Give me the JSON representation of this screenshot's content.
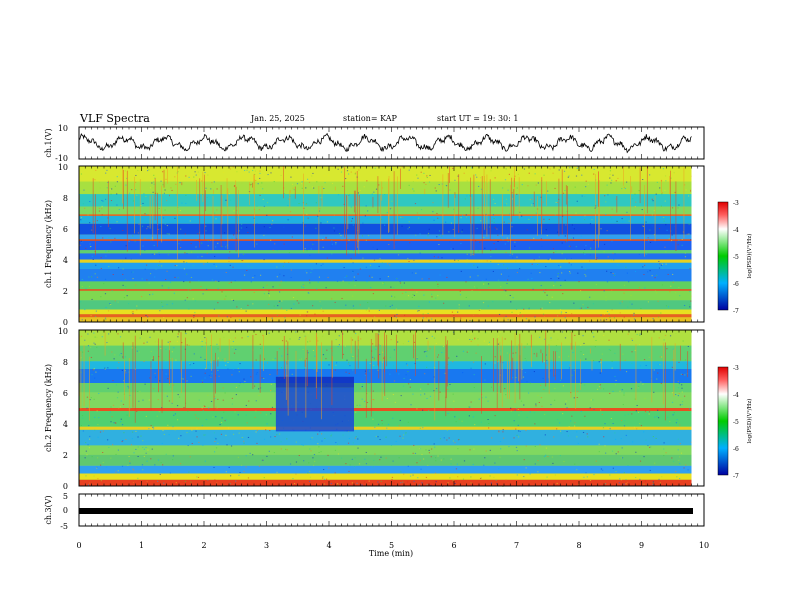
{
  "header": {
    "title": "VLF Spectra",
    "date": "Jan. 25, 2025",
    "station": "station= KAP",
    "start_ut": "start UT =  19: 30: 1"
  },
  "chart_data": [
    {
      "type": "line",
      "panel": "ch1-waveform",
      "ylabel": "ch.1(V)",
      "ylim": [
        -10,
        10
      ],
      "yticks": [
        "10",
        "-10"
      ],
      "x_range_min": [
        0,
        9.8
      ],
      "series_note": "oscillating waveform, approx amplitude 2-5 V"
    },
    {
      "type": "heatmap",
      "panel": "ch1-spectrogram",
      "ylabel": "ch.1 Frequency (kHz)",
      "ylim": [
        0,
        10
      ],
      "yticks": [
        "0",
        "2",
        "4",
        "6",
        "8",
        "10"
      ],
      "x_range_min": [
        0,
        9.8
      ],
      "colorbar": {
        "label": "log(PSD)(V²/Hz)",
        "range": [
          -7,
          -3
        ],
        "ticks": [
          "-3",
          "-4",
          "-5",
          "-6",
          "-7"
        ]
      }
    },
    {
      "type": "heatmap",
      "panel": "ch2-spectrogram",
      "ylabel": "ch.2 Frequency (kHz)",
      "ylim": [
        0,
        10
      ],
      "yticks": [
        "0",
        "2",
        "4",
        "6",
        "8",
        "10"
      ],
      "x_range_min": [
        0,
        9.8
      ],
      "colorbar": {
        "label": "log(PSD)(V²/Hz)",
        "range": [
          -7,
          -3
        ],
        "ticks": [
          "-3",
          "-4",
          "-5",
          "-6",
          "-7"
        ]
      }
    },
    {
      "type": "line",
      "panel": "ch3-waveform",
      "ylabel": "ch.3(V)",
      "ylim": [
        -5,
        5
      ],
      "yticks": [
        "5",
        "0",
        "-5"
      ],
      "x_range_min": [
        0,
        9.8
      ],
      "series_note": "dense signal band near 0 V"
    }
  ],
  "xaxis": {
    "label": "Time  (min)",
    "range": [
      0,
      10
    ],
    "ticks": [
      "0",
      "1",
      "2",
      "3",
      "4",
      "5",
      "6",
      "7",
      "8",
      "9",
      "10"
    ]
  },
  "colors": {
    "axis": "#000000",
    "colorbar_stops": [
      "#e00000",
      "#ffffff",
      "#00cc00",
      "#00a0ff",
      "#0000a0"
    ]
  }
}
